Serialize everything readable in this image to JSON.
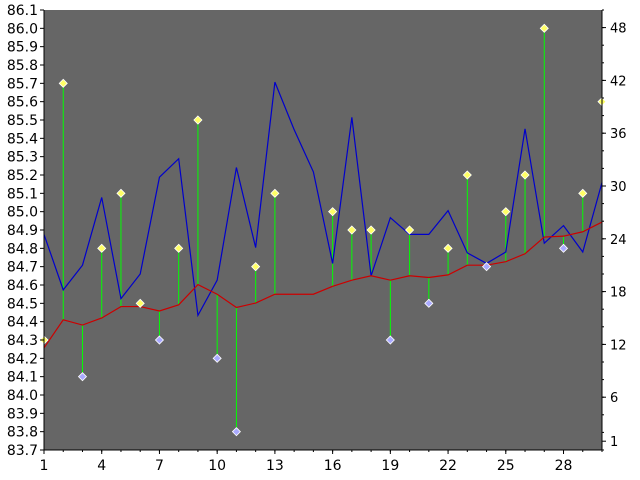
{
  "chart_data": {
    "type": "line",
    "title": "",
    "xlabel": "",
    "ylabel": "",
    "y2label": "",
    "grid": false,
    "legend": "none",
    "colors": {
      "plot_background": "#666666",
      "page_background": "#ffffff",
      "blue_series": "#0000cc",
      "red_series": "#cc0000",
      "stems": "#00ff00",
      "markers_up": "#ffff66",
      "markers_down": "#aaaaff",
      "marker_edge": "#ffffff"
    },
    "x": {
      "min": 1,
      "max": 30,
      "ticks": [
        1,
        4,
        7,
        10,
        13,
        16,
        19,
        22,
        25,
        28
      ],
      "tick_labels": [
        "1",
        "4",
        "7",
        "10",
        "13",
        "16",
        "19",
        "22",
        "25",
        "28"
      ]
    },
    "y_left": {
      "min": 83.7,
      "max": 86.1,
      "ticks": [
        83.7,
        83.8,
        83.9,
        84.0,
        84.1,
        84.2,
        84.3,
        84.4,
        84.5,
        84.6,
        84.7,
        84.8,
        84.9,
        85.0,
        85.1,
        85.2,
        85.3,
        85.4,
        85.5,
        85.6,
        85.7,
        85.8,
        85.9,
        86.0,
        86.1
      ],
      "tick_labels": [
        "83.7",
        "83.8",
        "83.9",
        "84.0",
        "84.1",
        "84.2",
        "84.3",
        "84.4",
        "84.5",
        "84.6",
        "84.7",
        "84.8",
        "84.9",
        "85.0",
        "85.1",
        "85.2",
        "85.3",
        "85.4",
        "85.5",
        "85.6",
        "85.7",
        "85.8",
        "85.9",
        "86.0",
        "86.1"
      ]
    },
    "y_right": {
      "min": 0,
      "max": 50,
      "ticks": [
        1,
        6,
        12,
        18,
        24,
        30,
        36,
        42,
        48
      ],
      "tick_labels": [
        "1",
        "6",
        "12",
        "18",
        "24",
        "30",
        "36",
        "42",
        "48"
      ]
    },
    "series": [
      {
        "axis": "right",
        "style": "line",
        "color_key": "blue_series",
        "x": [
          1,
          2,
          3,
          4,
          5,
          6,
          7,
          8,
          9,
          10,
          11,
          12,
          13,
          14,
          15,
          16,
          17,
          18,
          19,
          20,
          21,
          22,
          23,
          24,
          25,
          26,
          27,
          28,
          29,
          30
        ],
        "values": [
          24.5,
          18.2,
          21.0,
          28.7,
          17.2,
          20.0,
          31.0,
          33.1,
          15.3,
          19.3,
          32.1,
          23.0,
          41.8,
          36.4,
          31.6,
          21.2,
          37.8,
          19.8,
          26.4,
          24.5,
          24.5,
          27.2,
          22.4,
          21.2,
          22.5,
          36.5,
          23.5,
          25.5,
          22.5,
          30.4
        ]
      },
      {
        "axis": "right",
        "style": "line",
        "color_key": "red_series",
        "x": [
          1,
          2,
          3,
          4,
          5,
          6,
          7,
          8,
          9,
          10,
          11,
          12,
          13,
          14,
          15,
          16,
          17,
          18,
          19,
          20,
          21,
          22,
          23,
          24,
          25,
          26,
          27,
          28,
          29,
          30
        ],
        "values": [
          11.6,
          14.8,
          14.2,
          15.0,
          16.3,
          16.3,
          15.8,
          16.5,
          18.8,
          17.7,
          16.2,
          16.7,
          17.7,
          17.7,
          17.7,
          18.6,
          19.3,
          19.8,
          19.3,
          19.8,
          19.6,
          19.9,
          21.0,
          21.0,
          21.4,
          22.3,
          24.2,
          24.3,
          24.8,
          25.9
        ]
      },
      {
        "axis": "left",
        "style": "stem",
        "stem_from": "red_series",
        "x": [
          1,
          2,
          3,
          4,
          5,
          6,
          7,
          8,
          9,
          10,
          11,
          12,
          13,
          14,
          15,
          16,
          17,
          18,
          19,
          20,
          21,
          22,
          23,
          24,
          25,
          26,
          27,
          28,
          29,
          30
        ],
        "values": [
          84.3,
          85.7,
          84.1,
          84.8,
          85.1,
          84.5,
          84.3,
          84.8,
          85.5,
          84.2,
          83.8,
          84.7,
          85.1,
          null,
          null,
          85.0,
          84.9,
          84.9,
          84.3,
          84.9,
          84.5,
          84.8,
          85.2,
          84.7,
          85.0,
          85.2,
          86.0,
          84.8,
          85.1,
          85.6
        ]
      }
    ]
  }
}
